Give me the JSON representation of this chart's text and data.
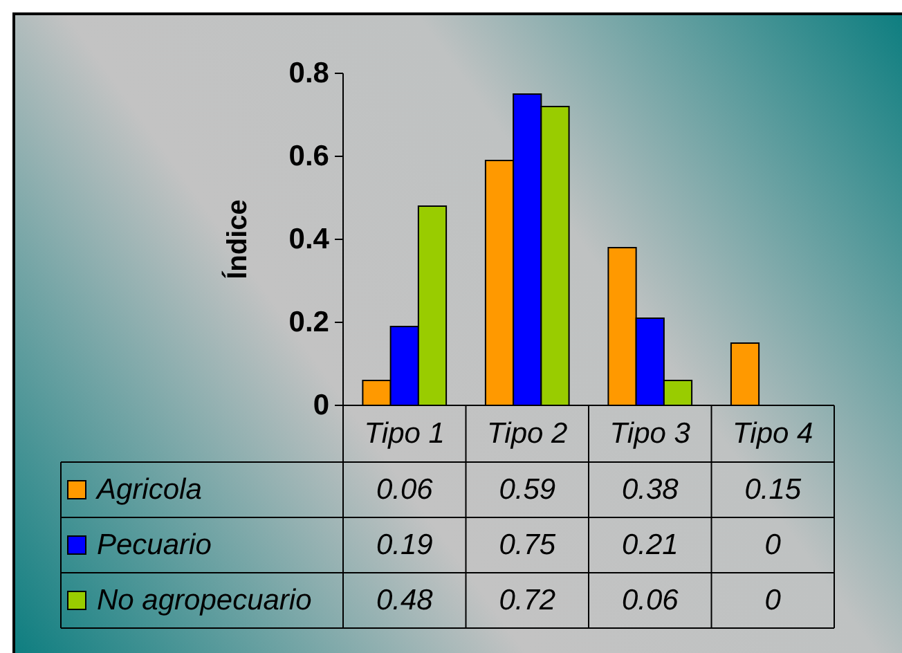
{
  "chart_data": {
    "type": "bar",
    "ylabel": "Índice",
    "categories": [
      "Tipo 1",
      "Tipo 2",
      "Tipo 3",
      "Tipo 4"
    ],
    "series": [
      {
        "name": "Agricola",
        "color": "#ff9900",
        "values": [
          0.06,
          0.59,
          0.38,
          0.15
        ]
      },
      {
        "name": "Pecuario",
        "color": "#0000ff",
        "values": [
          0.19,
          0.75,
          0.21,
          0
        ]
      },
      {
        "name": "No agropecuario",
        "color": "#99cc00",
        "values": [
          0.48,
          0.72,
          0.06,
          0
        ]
      }
    ],
    "ylim": [
      0,
      0.8
    ],
    "yticks": [
      0,
      0.2,
      0.4,
      0.6,
      0.8
    ],
    "legend": "bottom",
    "data_labels": true
  }
}
